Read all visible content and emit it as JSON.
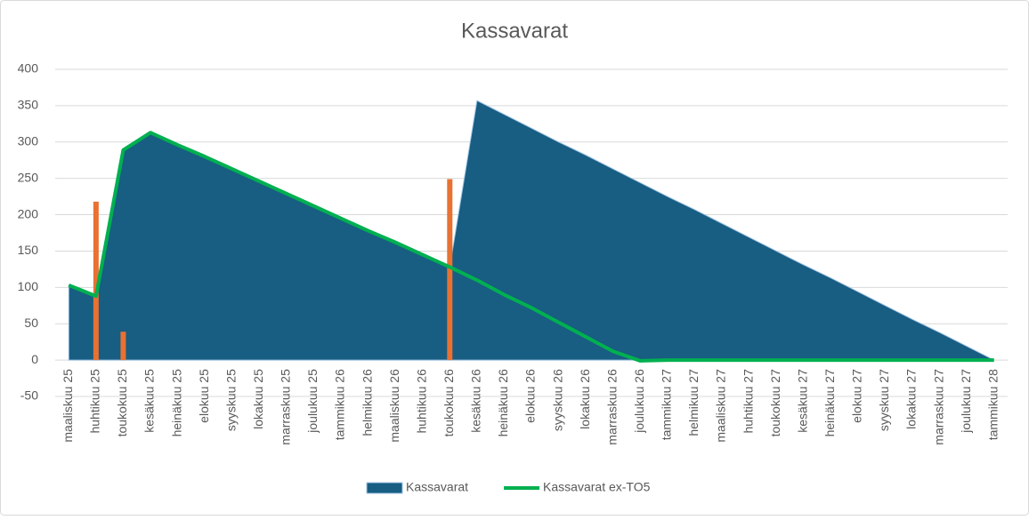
{
  "chart_data": {
    "type": "combo",
    "title": "Kassavarat",
    "categories": [
      "maaliskuu 25",
      "huhtikuu 25",
      "toukokuu 25",
      "kesäkuu 25",
      "heinäkuu 25",
      "elokuu 25",
      "syyskuu 25",
      "lokakuu 25",
      "marraskuu 25",
      "joulukuu 25",
      "tammikuu 26",
      "helmikuu 26",
      "maaliskuu 26",
      "huhtikuu 26",
      "toukokuu 26",
      "kesäkuu 26",
      "heinäkuu 26",
      "elokuu 26",
      "syyskuu 26",
      "lokakuu 26",
      "marraskuu 26",
      "joulukuu 26",
      "tammikuu 27",
      "helmikuu 27",
      "maaliskuu 27",
      "huhtikuu 27",
      "toukokuu 27",
      "kesäkuu 27",
      "heinäkuu 27",
      "elokuu 27",
      "syyskuu 27",
      "lokakuu 27",
      "marraskuu 27",
      "joulukuu 27",
      "tammikuu 28"
    ],
    "series": [
      {
        "name": "Kassavarat",
        "type": "area",
        "color": "#185d82",
        "values": [
          103,
          88,
          289,
          313,
          296,
          280,
          263,
          246,
          229,
          212,
          195,
          178,
          162,
          145,
          128,
          357,
          338,
          319,
          300,
          282,
          263,
          244,
          225,
          207,
          188,
          169,
          150,
          131,
          113,
          94,
          75,
          56,
          38,
          19,
          0
        ]
      },
      {
        "type": "bar",
        "color": "#e97132",
        "values": [
          null,
          218,
          39,
          null,
          null,
          null,
          null,
          null,
          null,
          null,
          null,
          null,
          null,
          null,
          249,
          null,
          null,
          null,
          null,
          null,
          null,
          null,
          null,
          null,
          null,
          null,
          null,
          null,
          null,
          null,
          null,
          null,
          null,
          null,
          null
        ]
      },
      {
        "name": "Kassavarat ex-TO5",
        "type": "line",
        "color": "#00b050",
        "values": [
          103,
          88,
          289,
          313,
          296,
          280,
          263,
          246,
          229,
          212,
          195,
          178,
          162,
          145,
          128,
          110,
          90,
          72,
          52,
          32,
          12,
          -1,
          0,
          0,
          0,
          0,
          0,
          0,
          0,
          0,
          0,
          0,
          0,
          0,
          0
        ]
      }
    ],
    "ylim": [
      -50,
      400
    ],
    "yticks": [
      -50,
      0,
      50,
      100,
      150,
      200,
      250,
      300,
      350,
      400
    ],
    "grid": true
  }
}
